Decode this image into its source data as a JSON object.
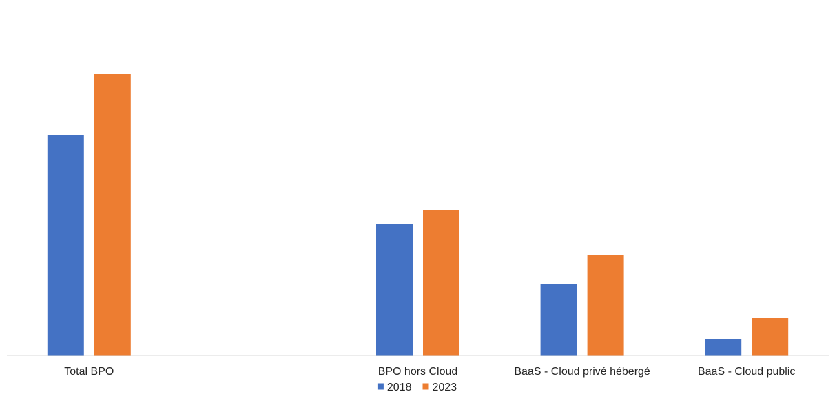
{
  "chart_data": {
    "type": "bar",
    "title": "",
    "xlabel": "",
    "ylabel": "",
    "categories": [
      "Total BPO",
      "",
      "BPO hors Cloud",
      "BaaS - Cloud privé hébergé",
      "BaaS - Cloud public"
    ],
    "series": [
      {
        "name": "2018",
        "color": "#4472C4",
        "values": [
          80,
          null,
          48,
          26,
          6
        ]
      },
      {
        "name": "2023",
        "color": "#ED7D31",
        "values": [
          102.5,
          null,
          53,
          36.5,
          13.5
        ]
      }
    ],
    "ylim": [
      0,
      120
    ],
    "grid": false,
    "legend_position": "bottom"
  }
}
